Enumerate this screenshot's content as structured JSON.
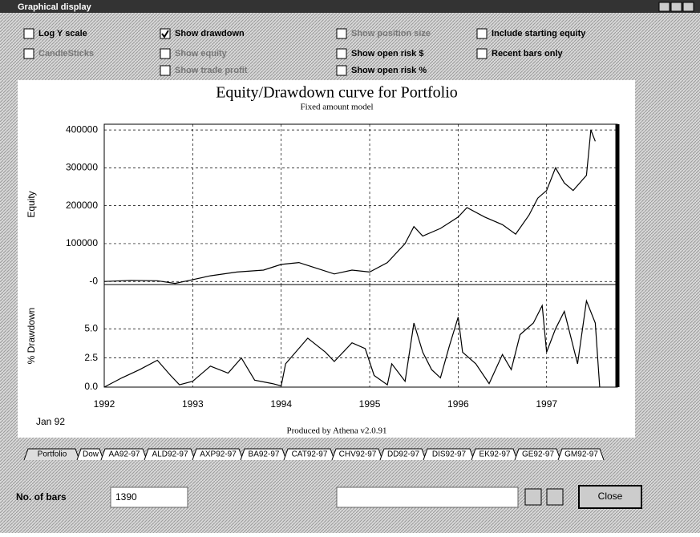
{
  "window": {
    "title": "Graphical display"
  },
  "options": [
    {
      "label": "Log Y scale",
      "checked": false,
      "enabled": true
    },
    {
      "label": "CandleSticks",
      "checked": false,
      "enabled": false
    },
    {
      "label": "Show drawdown",
      "checked": true,
      "enabled": true
    },
    {
      "label": "Show equity",
      "checked": false,
      "enabled": false
    },
    {
      "label": "Show trade profit",
      "checked": false,
      "enabled": false
    },
    {
      "label": "Show position size",
      "checked": false,
      "enabled": false
    },
    {
      "label": "Show open risk $",
      "checked": false,
      "enabled": true
    },
    {
      "label": "Show open risk %",
      "checked": false,
      "enabled": true
    },
    {
      "label": "Include starting equity",
      "checked": false,
      "enabled": true
    },
    {
      "label": "Recent bars only",
      "checked": false,
      "enabled": true
    }
  ],
  "chart_data": [
    {
      "type": "line",
      "title": "Equity/Drawdown curve for Portfolio",
      "subtitle": "Fixed amount model",
      "y_label": "Equity",
      "color": "#000000",
      "grid": true,
      "x": [
        1992.0,
        1992.3,
        1992.6,
        1992.8,
        1993.0,
        1993.2,
        1993.5,
        1993.8,
        1994.0,
        1994.2,
        1994.4,
        1994.6,
        1994.8,
        1995.0,
        1995.2,
        1995.4,
        1995.5,
        1995.6,
        1995.8,
        1996.0,
        1996.1,
        1996.3,
        1996.5,
        1996.65,
        1996.8,
        1996.9,
        1997.0,
        1997.1,
        1997.2,
        1997.3,
        1997.45,
        1997.5,
        1997.55
      ],
      "values": [
        0,
        3000,
        2000,
        -5000,
        5000,
        15000,
        25000,
        30000,
        45000,
        50000,
        35000,
        20000,
        30000,
        25000,
        50000,
        100000,
        145000,
        120000,
        140000,
        170000,
        195000,
        170000,
        150000,
        125000,
        175000,
        220000,
        240000,
        300000,
        260000,
        240000,
        280000,
        400000,
        370000
      ],
      "xlim": [
        1992.0,
        1997.8
      ],
      "xticks": [
        1992,
        1993,
        1994,
        1995,
        1996,
        1997
      ],
      "ylim": [
        -8000,
        415000
      ],
      "yticks": [
        400000,
        300000,
        200000,
        100000,
        {
          "value": 0,
          "label": "-0"
        }
      ]
    },
    {
      "type": "line",
      "y_label": "% Drawdown",
      "color": "#000000",
      "grid": true,
      "annotation": "Jan 92",
      "x": [
        1992.0,
        1992.2,
        1992.4,
        1992.6,
        1992.75,
        1992.85,
        1993.0,
        1993.2,
        1993.4,
        1993.55,
        1993.7,
        1993.9,
        1994.0,
        1994.05,
        1994.3,
        1994.5,
        1994.6,
        1994.8,
        1994.95,
        1995.05,
        1995.2,
        1995.25,
        1995.4,
        1995.5,
        1995.6,
        1995.7,
        1995.8,
        1995.9,
        1996.0,
        1996.05,
        1996.2,
        1996.35,
        1996.5,
        1996.6,
        1996.7,
        1996.85,
        1996.95,
        1997.0,
        1997.1,
        1997.2,
        1997.35,
        1997.45,
        1997.55,
        1997.6
      ],
      "values": [
        0,
        0.8,
        1.5,
        2.3,
        1.0,
        0.2,
        0.5,
        1.8,
        1.2,
        2.5,
        0.6,
        0.3,
        0.1,
        2.0,
        4.2,
        3.0,
        2.2,
        3.8,
        3.3,
        1.0,
        0.2,
        2.0,
        0.5,
        5.5,
        3.0,
        1.5,
        0.8,
        3.5,
        6.0,
        3.0,
        2.0,
        0.3,
        2.8,
        1.5,
        4.5,
        5.5,
        7.0,
        3.0,
        5.0,
        6.5,
        2.0,
        7.4,
        5.5,
        0.0
      ],
      "xlim": [
        1992.0,
        1997.8
      ],
      "xticks": [
        1992,
        1993,
        1994,
        1995,
        1996,
        1997
      ],
      "ylim": [
        0,
        8.8
      ],
      "yticks": [
        {
          "value": 5,
          "label": "5.0"
        },
        2.5,
        {
          "value": 0,
          "label": "0.0"
        }
      ]
    }
  ],
  "footer": "Produced by Athena v2.0.91",
  "tabs": [
    "Portfolio",
    "Dow",
    "AA92-97",
    "ALD92-97",
    "AXP92-97",
    "BA92-97",
    "CAT92-97",
    "CHV92-97",
    "DD92-97",
    "DIS92-97",
    "EK92-97",
    "GE92-97",
    "GM92-97"
  ],
  "bars": {
    "label": "No. of bars",
    "value": "1390"
  },
  "close": "Close"
}
